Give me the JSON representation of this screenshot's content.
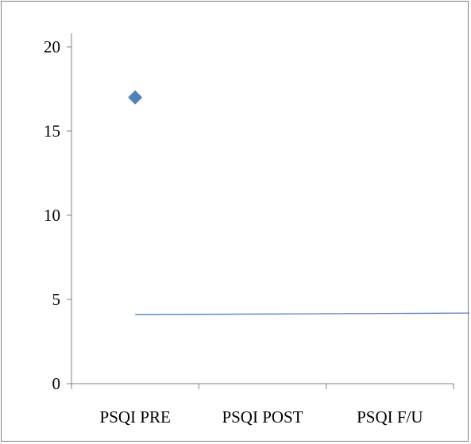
{
  "chart_data": {
    "type": "scatter",
    "categories": [
      "PSQI PRE",
      "PSQI POST",
      "PSQI F/U"
    ],
    "series": [
      {
        "type": "scatter",
        "marker": "diamond",
        "color": "#4f81bd",
        "points": [
          {
            "x": "PSQI PRE",
            "y": 17
          }
        ]
      },
      {
        "type": "line",
        "color": "#4f81bd",
        "points": [
          {
            "x": 0.5,
            "y": 4.1
          },
          {
            "x": 3.4,
            "y": 4.2
          }
        ]
      }
    ],
    "ylim": [
      0,
      20
    ],
    "y_ticks": [
      "0",
      "5",
      "10",
      "15",
      "20"
    ],
    "grid": false,
    "legend": "none",
    "title": "",
    "xlabel": "",
    "ylabel": ""
  }
}
